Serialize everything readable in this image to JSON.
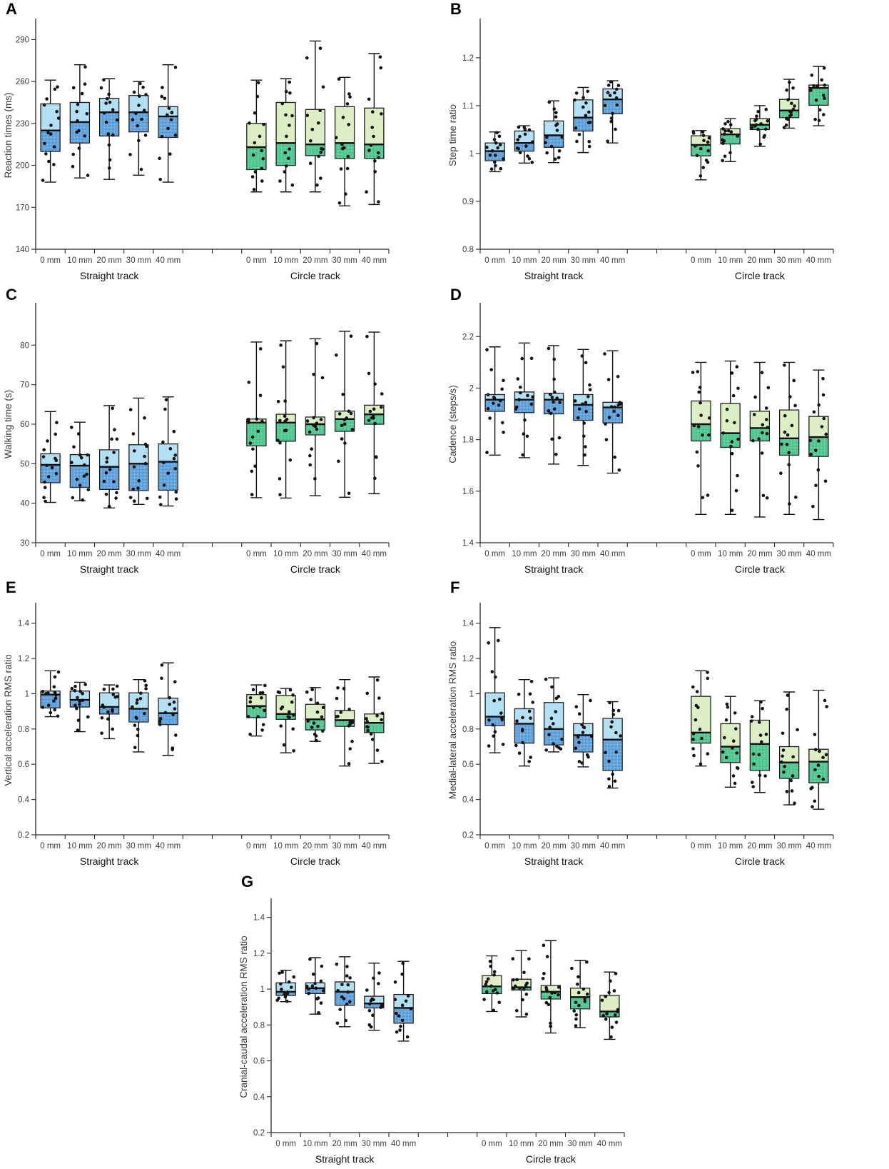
{
  "page": {
    "background": "#ffffff"
  },
  "style": {
    "palettes": {
      "blue": {
        "upper": "#A7DBF2",
        "lower": "#4E97D7"
      },
      "green": {
        "upper": "#D7ECBA",
        "lower": "#3CC084"
      }
    },
    "box_border": "#101010",
    "median_color": "#101010",
    "dot_color": "#121212",
    "axis_color": "#2a2a2a",
    "tick_label_color": "#3c3c3c",
    "track_label_color": "#111111",
    "panel_letter_color": "#000000"
  },
  "conditions": [
    "0 mm",
    "10 mm",
    "20 mm",
    "30 mm",
    "40 mm"
  ],
  "group_labels": [
    "Straight track",
    "Circle track"
  ],
  "box_format": [
    "whisker_low",
    "q1",
    "median",
    "q3",
    "whisker_high"
  ],
  "points_per_box": 15,
  "chart_data": [
    {
      "type": "boxplot",
      "letter": "A",
      "ylabel": "Reaction times (ms)",
      "ymin": 140,
      "ymax": 303,
      "ytick_values": [
        140,
        170,
        200,
        230,
        260,
        290
      ],
      "ytick_labels": [
        "140",
        "170",
        "200",
        "230",
        "260",
        "290"
      ],
      "groups": [
        {
          "label": "Straight track",
          "palette": "blue",
          "conditions": [
            "0 mm",
            "10 mm",
            "20 mm",
            "30 mm",
            "40 mm"
          ],
          "boxes": [
            [
              188,
              210,
              225,
              244,
              261
            ],
            [
              191,
              216,
              231,
              245,
              272
            ],
            [
              190,
              221,
              238,
              248,
              262
            ],
            [
              193,
              224,
              238,
              250,
              260
            ],
            [
              188,
              220,
              235,
              242,
              272
            ]
          ]
        },
        {
          "label": "Circle track",
          "palette": "green",
          "conditions": [
            "0 mm",
            "10 mm",
            "20 mm",
            "30 mm",
            "40 mm"
          ],
          "boxes": [
            [
              181,
              197,
              213,
              230,
              261
            ],
            [
              181,
              200,
              216,
              245,
              262
            ],
            [
              181,
              207,
              215,
              240,
              289
            ],
            [
              171,
              205,
              216,
              242,
              263
            ],
            [
              172,
              205,
              215,
              241,
              280
            ]
          ]
        }
      ]
    },
    {
      "type": "boxplot",
      "letter": "B",
      "ylabel": "Step time ratio",
      "ymin": 0.8,
      "ymax": 1.276,
      "ytick_values": [
        0.8,
        0.9,
        1.0,
        1.1,
        1.2
      ],
      "ytick_labels": [
        "0.8",
        "0.9",
        "1",
        "1.1",
        "1.2"
      ],
      "groups": [
        {
          "label": "Straight track",
          "palette": "blue",
          "conditions": [
            "0 mm",
            "10 mm",
            "20 mm",
            "30 mm",
            "40 mm"
          ],
          "boxes": [
            [
              0.962,
              0.985,
              1.005,
              1.022,
              1.045
            ],
            [
              0.98,
              1.005,
              1.022,
              1.047,
              1.058
            ],
            [
              0.981,
              1.013,
              1.038,
              1.068,
              1.11
            ],
            [
              1.002,
              1.047,
              1.075,
              1.112,
              1.138
            ],
            [
              1.022,
              1.083,
              1.113,
              1.135,
              1.152
            ]
          ]
        },
        {
          "label": "Circle track",
          "palette": "green",
          "conditions": [
            "0 mm",
            "10 mm",
            "20 mm",
            "30 mm",
            "40 mm"
          ],
          "boxes": [
            [
              0.945,
              0.995,
              1.018,
              1.037,
              1.048
            ],
            [
              0.983,
              1.02,
              1.04,
              1.052,
              1.073
            ],
            [
              1.015,
              1.05,
              1.06,
              1.073,
              1.1
            ],
            [
              1.053,
              1.075,
              1.09,
              1.113,
              1.155
            ],
            [
              1.058,
              1.101,
              1.137,
              1.143,
              1.182
            ]
          ]
        }
      ]
    },
    {
      "type": "boxplot",
      "letter": "C",
      "ylabel": "Walking time (s)",
      "ymin": 30,
      "ymax": 90,
      "ytick_values": [
        30,
        40,
        50,
        60,
        70,
        80
      ],
      "ytick_labels": [
        "30",
        "40",
        "50",
        "60",
        "70",
        "80"
      ],
      "groups": [
        {
          "label": "Straight track",
          "palette": "blue",
          "conditions": [
            "0 mm",
            "10 mm",
            "20 mm",
            "30 mm",
            "40 mm"
          ],
          "boxes": [
            [
              40.2,
              45.2,
              49.7,
              52.5,
              63.2
            ],
            [
              40.6,
              44.0,
              49.5,
              52.3,
              60.5
            ],
            [
              38.8,
              43.5,
              49.2,
              53.5,
              64.7
            ],
            [
              39.7,
              43.2,
              50.0,
              54.8,
              66.6
            ],
            [
              39.3,
              43.3,
              50.5,
              55.0,
              66.9
            ]
          ]
        },
        {
          "label": "Circle track",
          "palette": "green",
          "conditions": [
            "0 mm",
            "10 mm",
            "20 mm",
            "30 mm",
            "40 mm"
          ],
          "boxes": [
            [
              41.4,
              54.5,
              60.4,
              61.3,
              80.8
            ],
            [
              41.3,
              55.7,
              60.4,
              62.5,
              81.1
            ],
            [
              41.9,
              57.3,
              60.0,
              61.8,
              81.6
            ],
            [
              41.5,
              58.2,
              61.3,
              63.3,
              83.5
            ],
            [
              42.4,
              60.0,
              62.5,
              64.8,
              83.3
            ]
          ]
        }
      ]
    },
    {
      "type": "boxplot",
      "letter": "D",
      "ylabel": "Cadence (steps/s)",
      "ymin": 1.4,
      "ymax": 2.32,
      "ytick_values": [
        1.4,
        1.6,
        1.8,
        2.0,
        2.2
      ],
      "ytick_labels": [
        "1.4",
        "1.6",
        "1.8",
        "2",
        "2.2"
      ],
      "groups": [
        {
          "label": "Straight track",
          "palette": "blue",
          "conditions": [
            "0 mm",
            "10 mm",
            "20 mm",
            "30 mm",
            "40 mm"
          ],
          "boxes": [
            [
              1.74,
              1.91,
              1.955,
              1.975,
              2.16
            ],
            [
              1.73,
              1.905,
              1.955,
              1.985,
              2.175
            ],
            [
              1.705,
              1.9,
              1.955,
              1.98,
              2.165
            ],
            [
              1.7,
              1.875,
              1.935,
              1.975,
              2.15
            ],
            [
              1.67,
              1.865,
              1.925,
              1.945,
              2.145
            ]
          ]
        },
        {
          "label": "Circle track",
          "palette": "green",
          "conditions": [
            "0 mm",
            "10 mm",
            "20 mm",
            "30 mm",
            "40 mm"
          ],
          "boxes": [
            [
              1.51,
              1.795,
              1.86,
              1.95,
              2.1
            ],
            [
              1.51,
              1.77,
              1.825,
              1.94,
              2.105
            ],
            [
              1.5,
              1.795,
              1.845,
              1.91,
              2.1
            ],
            [
              1.51,
              1.74,
              1.805,
              1.915,
              2.1
            ],
            [
              1.49,
              1.735,
              1.81,
              1.89,
              2.07
            ]
          ]
        }
      ]
    },
    {
      "type": "boxplot",
      "letter": "E",
      "ylabel": "Vertical acceleration RMS ratio",
      "ymin": 0.2,
      "ymax": 1.5,
      "ytick_values": [
        0.2,
        0.4,
        0.6,
        0.8,
        1.0,
        1.2,
        1.4
      ],
      "ytick_labels": [
        "0.2",
        "0.4",
        "0.6",
        "0.8",
        "1",
        "1.2",
        "1.4"
      ],
      "groups": [
        {
          "label": "Straight track",
          "palette": "blue",
          "conditions": [
            "0 mm",
            "10 mm",
            "20 mm",
            "30 mm",
            "40 mm"
          ],
          "boxes": [
            [
              0.87,
              0.92,
              0.995,
              1.015,
              1.13
            ],
            [
              0.785,
              0.925,
              0.965,
              1.015,
              1.065
            ],
            [
              0.745,
              0.885,
              0.925,
              1.005,
              1.05
            ],
            [
              0.67,
              0.84,
              0.915,
              1.005,
              1.08
            ],
            [
              0.65,
              0.825,
              0.89,
              0.975,
              1.175
            ]
          ]
        },
        {
          "label": "Circle track",
          "palette": "green",
          "conditions": [
            "0 mm",
            "10 mm",
            "20 mm",
            "30 mm",
            "40 mm"
          ],
          "boxes": [
            [
              0.76,
              0.865,
              0.93,
              0.995,
              1.05
            ],
            [
              0.665,
              0.855,
              0.885,
              0.99,
              1.03
            ],
            [
              0.73,
              0.795,
              0.855,
              0.94,
              1.035
            ],
            [
              0.59,
              0.815,
              0.85,
              0.905,
              1.08
            ],
            [
              0.605,
              0.78,
              0.835,
              0.885,
              1.095
            ]
          ]
        }
      ]
    },
    {
      "type": "boxplot",
      "letter": "F",
      "ylabel": "Medial-lateral acceleration RMS ratio",
      "ymin": 0.2,
      "ymax": 1.5,
      "ytick_values": [
        0.2,
        0.4,
        0.6,
        0.8,
        1.0,
        1.2,
        1.4
      ],
      "ytick_labels": [
        "0.2",
        "0.4",
        "0.6",
        "0.8",
        "1",
        "1.2",
        "1.4"
      ],
      "groups": [
        {
          "label": "Straight track",
          "palette": "blue",
          "conditions": [
            "0 mm",
            "10 mm",
            "20 mm",
            "30 mm",
            "40 mm"
          ],
          "boxes": [
            [
              0.665,
              0.82,
              0.87,
              1.005,
              1.375
            ],
            [
              0.59,
              0.72,
              0.83,
              0.915,
              1.08
            ],
            [
              0.67,
              0.71,
              0.8,
              0.95,
              1.09
            ],
            [
              0.585,
              0.67,
              0.765,
              0.83,
              0.995
            ],
            [
              0.465,
              0.565,
              0.74,
              0.86,
              0.955
            ]
          ]
        },
        {
          "label": "Circle track",
          "palette": "green",
          "conditions": [
            "0 mm",
            "10 mm",
            "20 mm",
            "30 mm",
            "40 mm"
          ],
          "boxes": [
            [
              0.59,
              0.72,
              0.78,
              0.985,
              1.13
            ],
            [
              0.47,
              0.61,
              0.7,
              0.83,
              0.985
            ],
            [
              0.44,
              0.565,
              0.715,
              0.85,
              0.96
            ],
            [
              0.37,
              0.52,
              0.61,
              0.7,
              1.01
            ],
            [
              0.345,
              0.495,
              0.615,
              0.685,
              1.02
            ]
          ]
        }
      ]
    },
    {
      "type": "boxplot",
      "letter": "G",
      "ylabel": "Cranial-caudal acceleration RMS ratio",
      "ymin": 0.2,
      "ymax": 1.49,
      "ytick_values": [
        0.2,
        0.4,
        0.6,
        0.8,
        1.0,
        1.2,
        1.4
      ],
      "ytick_labels": [
        "0.2",
        "0.4",
        "0.6",
        "0.8",
        "1",
        "1.2",
        "1.4"
      ],
      "groups": [
        {
          "label": "Straight track",
          "palette": "blue",
          "conditions": [
            "0 mm",
            "10 mm",
            "20 mm",
            "30 mm",
            "40 mm"
          ],
          "boxes": [
            [
              0.93,
              0.965,
              0.985,
              1.035,
              1.105
            ],
            [
              0.86,
              0.975,
              1.005,
              1.035,
              1.175
            ],
            [
              0.79,
              0.91,
              0.985,
              1.04,
              1.18
            ],
            [
              0.77,
              0.895,
              0.92,
              0.96,
              1.145
            ],
            [
              0.71,
              0.81,
              0.895,
              0.97,
              1.155
            ]
          ]
        },
        {
          "label": "Circle track",
          "palette": "green",
          "conditions": [
            "0 mm",
            "10 mm",
            "20 mm",
            "30 mm",
            "40 mm"
          ],
          "boxes": [
            [
              0.875,
              0.975,
              1.015,
              1.075,
              1.185
            ],
            [
              0.845,
              0.995,
              1.01,
              1.055,
              1.215
            ],
            [
              0.755,
              0.945,
              0.985,
              1.02,
              1.27
            ],
            [
              0.785,
              0.89,
              0.955,
              1.005,
              1.16
            ],
            [
              0.72,
              0.845,
              0.875,
              0.965,
              1.095
            ]
          ]
        }
      ]
    }
  ]
}
